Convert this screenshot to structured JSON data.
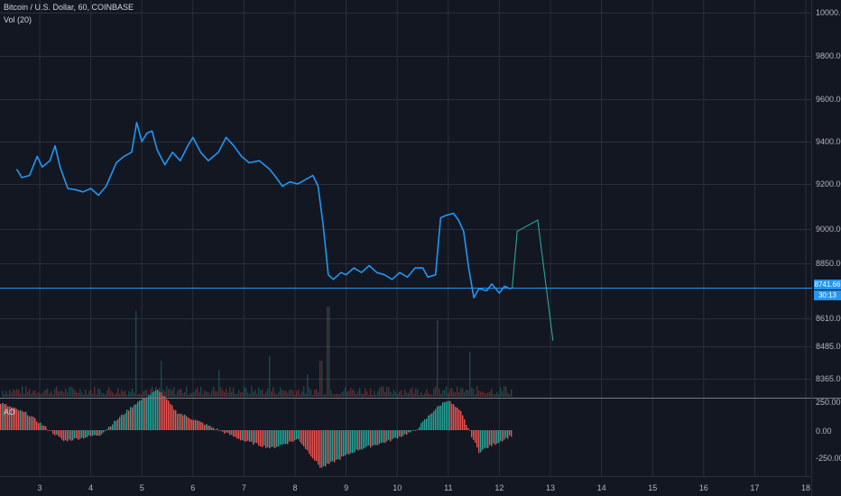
{
  "legend": {
    "symbol": "Bitcoin / U.S. Dollar, 60, COINBASE",
    "volume": "Vol (20)",
    "oscillator": "AO"
  },
  "price_tag": {
    "price": "8741.66",
    "countdown": "30:13"
  },
  "colors": {
    "background": "#131722",
    "grid": "#2a2e39",
    "price_line": "#2196f3",
    "forecast": "#26a69a",
    "up": "#26a69a",
    "down": "#ef5350",
    "separator": "#787b86"
  },
  "chart_data": {
    "type": "line",
    "x_ticks": [
      "3",
      "4",
      "5",
      "6",
      "7",
      "8",
      "9",
      "10",
      "11",
      "12",
      "13",
      "14",
      "15",
      "16",
      "17",
      "18"
    ],
    "y_ticks": [
      "10000.00",
      "9800.00",
      "9600.00",
      "9400.00",
      "9200.00",
      "9000.00",
      "8850.00",
      "8610.00",
      "8485.00",
      "8365.00"
    ],
    "ao_ticks": [
      "250.00",
      "0.00",
      "-250.00"
    ],
    "series": [
      {
        "values": [
          [
            2.55,
            9270
          ],
          [
            2.65,
            9230
          ],
          [
            2.8,
            9240
          ],
          [
            2.95,
            9330
          ],
          [
            3.05,
            9280
          ],
          [
            3.2,
            9310
          ],
          [
            3.3,
            9380
          ],
          [
            3.4,
            9280
          ],
          [
            3.55,
            9180
          ],
          [
            3.7,
            9175
          ],
          [
            3.85,
            9165
          ],
          [
            4.0,
            9180
          ],
          [
            4.15,
            9150
          ],
          [
            4.3,
            9190
          ],
          [
            4.5,
            9300
          ],
          [
            4.65,
            9330
          ],
          [
            4.8,
            9350
          ],
          [
            4.9,
            9490
          ],
          [
            5.0,
            9400
          ],
          [
            5.1,
            9440
          ],
          [
            5.2,
            9450
          ],
          [
            5.3,
            9360
          ],
          [
            5.45,
            9290
          ],
          [
            5.6,
            9350
          ],
          [
            5.75,
            9310
          ],
          [
            5.9,
            9380
          ],
          [
            6.0,
            9420
          ],
          [
            6.15,
            9350
          ],
          [
            6.3,
            9310
          ],
          [
            6.5,
            9350
          ],
          [
            6.65,
            9420
          ],
          [
            6.8,
            9380
          ],
          [
            6.95,
            9330
          ],
          [
            7.1,
            9300
          ],
          [
            7.3,
            9310
          ],
          [
            7.5,
            9270
          ],
          [
            7.6,
            9240
          ],
          [
            7.75,
            9190
          ],
          [
            7.9,
            9210
          ],
          [
            8.05,
            9200
          ],
          [
            8.2,
            9220
          ],
          [
            8.35,
            9240
          ],
          [
            8.45,
            9190
          ],
          [
            8.55,
            9020
          ],
          [
            8.65,
            8800
          ],
          [
            8.75,
            8780
          ],
          [
            8.9,
            8810
          ],
          [
            9.0,
            8800
          ],
          [
            9.15,
            8830
          ],
          [
            9.3,
            8810
          ],
          [
            9.45,
            8840
          ],
          [
            9.6,
            8810
          ],
          [
            9.75,
            8800
          ],
          [
            9.9,
            8780
          ],
          [
            10.05,
            8810
          ],
          [
            10.2,
            8790
          ],
          [
            10.35,
            8830
          ],
          [
            10.5,
            8830
          ],
          [
            10.6,
            8790
          ],
          [
            10.75,
            8800
          ],
          [
            10.85,
            9050
          ],
          [
            10.95,
            9060
          ],
          [
            11.1,
            9070
          ],
          [
            11.2,
            9040
          ],
          [
            11.3,
            8990
          ],
          [
            11.4,
            8830
          ],
          [
            11.5,
            8700
          ],
          [
            11.6,
            8740
          ],
          [
            11.75,
            8730
          ],
          [
            11.85,
            8760
          ],
          [
            12.0,
            8720
          ],
          [
            12.1,
            8750
          ],
          [
            12.2,
            8740
          ],
          [
            12.25,
            8742
          ]
        ]
      },
      {
        "values": [
          [
            12.25,
            8742
          ],
          [
            12.35,
            8990
          ],
          [
            12.75,
            9040
          ],
          [
            13.05,
            8510
          ]
        ]
      }
    ],
    "horizontal_line": 8742,
    "xlim": [
      2.5,
      18.2
    ],
    "ylim": [
      8330,
      10020
    ],
    "ao_ylim": [
      -330,
      320
    ]
  }
}
